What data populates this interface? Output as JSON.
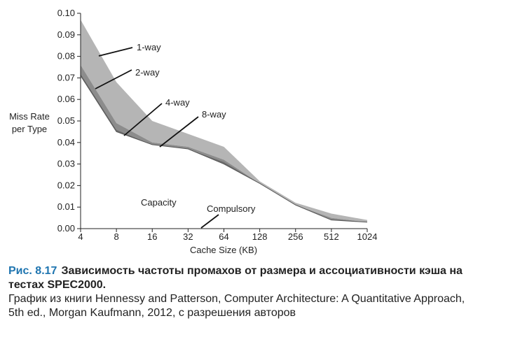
{
  "chart_data": {
    "type": "area",
    "x": [
      "4",
      "8",
      "16",
      "32",
      "64",
      "128",
      "256",
      "512",
      "1024"
    ],
    "xlabel": "Cache Size (KB)",
    "ylabel": [
      "Miss Rate",
      "per Type"
    ],
    "ylim": [
      0,
      0.1
    ],
    "yticks": [
      "0.00",
      "0.01",
      "0.02",
      "0.03",
      "0.04",
      "0.05",
      "0.06",
      "0.07",
      "0.08",
      "0.09",
      "0.10"
    ],
    "series": [
      {
        "name": "1-way",
        "values": [
          0.097,
          0.068,
          0.05,
          0.044,
          0.038,
          0.022,
          0.012,
          0.007,
          0.004
        ],
        "color": "#b5b5b5"
      },
      {
        "name": "2-way",
        "values": [
          0.076,
          0.049,
          0.04,
          0.038,
          0.032,
          0.021,
          0.011,
          0.005,
          0.003
        ],
        "color": "#8c8c8c"
      },
      {
        "name": "4-way",
        "values": [
          0.072,
          0.046,
          0.039,
          0.037,
          0.031,
          0.021,
          0.011,
          0.004,
          0.003
        ],
        "color": "#6e6e6e"
      },
      {
        "name": "8-way",
        "values": [
          0.071,
          0.045,
          0.039,
          0.037,
          0.03,
          0.021,
          0.011,
          0.004,
          0.003
        ],
        "color": "#ffffff"
      }
    ],
    "annotations": [
      "1-way",
      "2-way",
      "4-way",
      "8-way",
      "Capacity",
      "Compulsory"
    ]
  },
  "caption": {
    "figure": "Рис. 8.17",
    "title_line1": "Зависимость частоты промахов от размера и ассоциативности кэша на",
    "title_line2": "тестах SPEC2000.",
    "line3": "График из книги Hennessy and Patterson, Computer Architecture: A Quantitative Approach,",
    "line4": "5th ed., Morgan Kaufmann, 2012, с разрешения авторов"
  }
}
